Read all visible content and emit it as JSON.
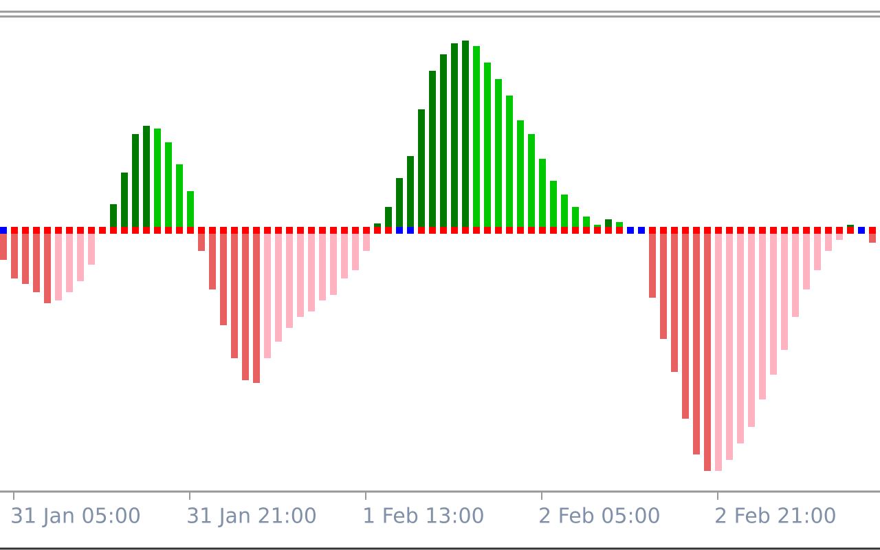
{
  "chart_data": {
    "type": "bar",
    "categories": [
      null,
      "31 Jan 05:00",
      null,
      null,
      null,
      null,
      null,
      null,
      null,
      null,
      null,
      null,
      null,
      null,
      null,
      null,
      null,
      "31 Jan 21:00",
      null,
      null,
      null,
      null,
      null,
      null,
      null,
      null,
      null,
      null,
      null,
      null,
      null,
      null,
      null,
      "1 Feb 13:00",
      null,
      null,
      null,
      null,
      null,
      null,
      null,
      null,
      null,
      null,
      null,
      null,
      null,
      null,
      null,
      "2 Feb 05:00",
      null,
      null,
      null,
      null,
      null,
      null,
      null,
      null,
      null,
      null,
      null,
      null,
      null,
      null,
      null,
      "2 Feb 21:00",
      null,
      null,
      null,
      null,
      null,
      null,
      null,
      null,
      null,
      null,
      null,
      null,
      null,
      null,
      null
    ],
    "values": [
      -43,
      -70,
      -78,
      -90,
      -106,
      -102,
      -90,
      -74,
      -50,
      null,
      38,
      84,
      140,
      152,
      148,
      128,
      96,
      57,
      -30,
      -86,
      -138,
      -186,
      -218,
      -222,
      -186,
      -162,
      -142,
      -126,
      -118,
      -102,
      -94,
      -70,
      -58,
      -30,
      10,
      34,
      76,
      108,
      176,
      232,
      256,
      272,
      276,
      268,
      244,
      220,
      196,
      160,
      140,
      104,
      72,
      52,
      34,
      20,
      8,
      16,
      12,
      null,
      null,
      -98,
      -158,
      -206,
      -274,
      -326,
      -350,
      -350,
      -334,
      -310,
      -286,
      -246,
      -210,
      -174,
      -126,
      -86,
      -58,
      -30,
      -14,
      8,
      null,
      -18,
      -45
    ],
    "colors": [
      "#e86060",
      "#e86060",
      "#e86060",
      "#e86060",
      "#e86060",
      "#ffb3c1",
      "#ffb3c1",
      "#ffb3c1",
      "#ffb3c1",
      null,
      "#007a00",
      "#007a00",
      "#007a00",
      "#007a00",
      "#00c800",
      "#00c800",
      "#00c800",
      "#00c800",
      "#e86060",
      "#e86060",
      "#e86060",
      "#e86060",
      "#e86060",
      "#e86060",
      "#ffb3c1",
      "#ffb3c1",
      "#ffb3c1",
      "#ffb3c1",
      "#ffb3c1",
      "#ffb3c1",
      "#ffb3c1",
      "#ffb3c1",
      "#ffb3c1",
      "#ffb3c1",
      "#007a00",
      "#007a00",
      "#007a00",
      "#007a00",
      "#007a00",
      "#007a00",
      "#007a00",
      "#007a00",
      "#007a00",
      "#00c800",
      "#00c800",
      "#00c800",
      "#00c800",
      "#00c800",
      "#00c800",
      "#00c800",
      "#00c800",
      "#00c800",
      "#00c800",
      "#00c800",
      "#00c800",
      "#007a00",
      "#00c800",
      null,
      null,
      "#e86060",
      "#e86060",
      "#e86060",
      "#e86060",
      "#e86060",
      "#e86060",
      "#ffb3c1",
      "#ffb3c1",
      "#ffb3c1",
      "#ffb3c1",
      "#ffb3c1",
      "#ffb3c1",
      "#ffb3c1",
      "#ffb3c1",
      "#ffb3c1",
      "#ffb3c1",
      "#ffb3c1",
      "#ffb3c1",
      "#007a00",
      null,
      "#e86060",
      "#e86060"
    ],
    "signal_colors": [
      "#0000ff",
      "#ff0000",
      "#ff0000",
      "#ff0000",
      "#ff0000",
      "#ff0000",
      "#ff0000",
      "#ff0000",
      "#ff0000",
      "#ff0000",
      "#ff0000",
      "#ff0000",
      "#ff0000",
      "#ff0000",
      "#ff0000",
      "#ff0000",
      "#ff0000",
      "#ff0000",
      "#ff0000",
      "#ff0000",
      "#ff0000",
      "#ff0000",
      "#ff0000",
      "#ff0000",
      "#ff0000",
      "#ff0000",
      "#ff0000",
      "#ff0000",
      "#ff0000",
      "#ff0000",
      "#ff0000",
      "#ff0000",
      "#ff0000",
      "#ff0000",
      "#ff0000",
      "#ff0000",
      "#0000ff",
      "#0000ff",
      "#ff0000",
      "#ff0000",
      "#ff0000",
      "#ff0000",
      "#ff0000",
      "#ff0000",
      "#ff0000",
      "#ff0000",
      "#ff0000",
      "#ff0000",
      "#ff0000",
      "#ff0000",
      "#ff0000",
      "#ff0000",
      "#ff0000",
      "#ff0000",
      "#ff0000",
      "#ff0000",
      "#ff0000",
      "#0000ff",
      "#0000ff",
      "#ff0000",
      "#ff0000",
      "#ff0000",
      "#ff0000",
      "#ff0000",
      "#ff0000",
      "#ff0000",
      "#ff0000",
      "#ff0000",
      "#ff0000",
      "#ff0000",
      "#ff0000",
      "#ff0000",
      "#ff0000",
      "#ff0000",
      "#ff0000",
      "#ff0000",
      "#ff0000",
      "#ff0000",
      "#0000ff",
      "#ff0000",
      "#ff0000"
    ],
    "ylim": [
      -380,
      309
    ]
  }
}
